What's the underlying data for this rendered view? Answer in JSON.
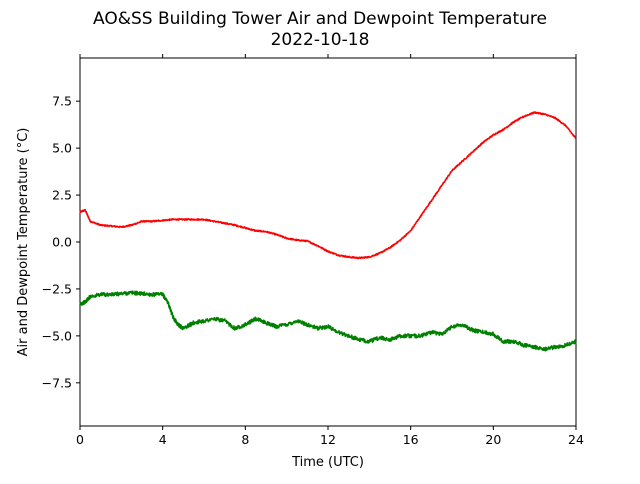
{
  "chart_data": {
    "type": "line",
    "title": "AO&SS Building Tower Air and Dewpoint Temperature",
    "subtitle": "2022-10-18",
    "xlabel": "Time (UTC)",
    "ylabel": "Air and Dewpoint Temperature (°C)",
    "xlim": [
      0,
      24
    ],
    "ylim": [
      -9.8,
      9.8
    ],
    "xticks": [
      0,
      4,
      8,
      12,
      16,
      20,
      24
    ],
    "xtick_labels": [
      "0",
      "4",
      "8",
      "12",
      "16",
      "20",
      "24"
    ],
    "yticks": [
      -7.5,
      -5.0,
      -2.5,
      0.0,
      2.5,
      5.0,
      7.5
    ],
    "ytick_labels": [
      "−7.5",
      "−5.0",
      "−2.5",
      "0.0",
      "2.5",
      "5.0",
      "7.5"
    ],
    "grid": false,
    "series": [
      {
        "color": "#ff0000",
        "x": [
          0,
          0.25,
          0.5,
          1,
          1.5,
          2,
          2.5,
          3,
          3.5,
          4,
          4.5,
          5,
          5.5,
          6,
          6.5,
          7,
          7.5,
          8,
          8.5,
          9,
          9.5,
          10,
          10.5,
          11,
          11.5,
          12,
          12.5,
          13,
          13.5,
          14,
          14.5,
          15,
          15.5,
          16,
          16.5,
          17,
          17.5,
          18,
          18.5,
          19,
          19.5,
          20,
          20.5,
          21,
          21.5,
          22,
          22.5,
          23,
          23.5,
          24
        ],
        "y": [
          1.6,
          1.7,
          1.1,
          0.9,
          0.85,
          0.8,
          0.9,
          1.1,
          1.1,
          1.15,
          1.2,
          1.2,
          1.2,
          1.2,
          1.1,
          1.0,
          0.9,
          0.75,
          0.6,
          0.55,
          0.4,
          0.2,
          0.1,
          0.05,
          -0.2,
          -0.5,
          -0.7,
          -0.8,
          -0.85,
          -0.8,
          -0.6,
          -0.3,
          0.1,
          0.6,
          1.4,
          2.2,
          3.0,
          3.8,
          4.3,
          4.8,
          5.3,
          5.7,
          6.0,
          6.4,
          6.7,
          6.9,
          6.8,
          6.6,
          6.2,
          5.5
        ]
      },
      {
        "color": "#008000",
        "x": [
          0,
          0.25,
          0.5,
          1,
          1.5,
          2,
          2.5,
          3,
          3.5,
          4,
          4.25,
          4.5,
          4.75,
          5,
          5.5,
          6,
          6.5,
          7,
          7.5,
          8,
          8.5,
          9,
          9.5,
          10,
          10.5,
          11,
          11.5,
          12,
          12.5,
          13,
          13.5,
          14,
          14.5,
          15,
          15.5,
          16,
          16.5,
          17,
          17.5,
          18,
          18.5,
          19,
          19.5,
          20,
          20.5,
          21,
          21.5,
          22,
          22.5,
          23,
          23.5,
          24
        ],
        "y": [
          -3.3,
          -3.2,
          -2.9,
          -2.8,
          -2.8,
          -2.75,
          -2.7,
          -2.75,
          -2.8,
          -2.8,
          -3.2,
          -4.0,
          -4.4,
          -4.6,
          -4.3,
          -4.2,
          -4.1,
          -4.2,
          -4.6,
          -4.4,
          -4.1,
          -4.3,
          -4.5,
          -4.4,
          -4.2,
          -4.4,
          -4.6,
          -4.5,
          -4.8,
          -5.0,
          -5.2,
          -5.3,
          -5.1,
          -5.2,
          -5.0,
          -5.0,
          -5.0,
          -4.8,
          -4.9,
          -4.5,
          -4.4,
          -4.7,
          -4.8,
          -4.9,
          -5.3,
          -5.3,
          -5.5,
          -5.6,
          -5.7,
          -5.6,
          -5.5,
          -5.3
        ]
      }
    ]
  }
}
